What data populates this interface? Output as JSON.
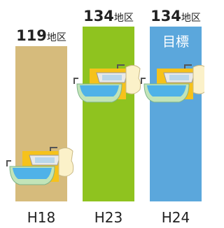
{
  "chart_data": {
    "type": "bar",
    "categories": [
      "H18",
      "H23",
      "H24"
    ],
    "values": [
      119,
      134,
      134
    ],
    "unit": "地区",
    "colors": [
      "#d6bb7c",
      "#8fc31f",
      "#5ba7dc"
    ],
    "annotation": "目標",
    "annotation_category": 2
  }
}
